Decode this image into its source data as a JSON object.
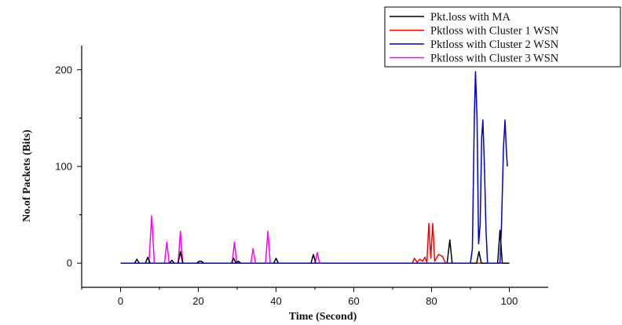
{
  "chart_data": {
    "type": "line",
    "title": "",
    "xlabel": "Time (Second)",
    "ylabel": "No.of Packets (Bits)",
    "xlim": [
      -10,
      110
    ],
    "ylim": [
      -25,
      225
    ],
    "x_ticks": [
      0,
      20,
      40,
      60,
      80,
      100
    ],
    "y_ticks": [
      0,
      100,
      200
    ],
    "grid": false,
    "legend_position": "top-right",
    "series": [
      {
        "name": "Pkt.loss with MA",
        "color": "#000000",
        "points": [
          [
            0,
            0
          ],
          [
            3.6,
            0
          ],
          [
            4.2,
            4
          ],
          [
            4.8,
            0
          ],
          [
            6.4,
            0
          ],
          [
            7,
            6
          ],
          [
            7.6,
            0
          ],
          [
            12.6,
            0
          ],
          [
            13.2,
            3
          ],
          [
            13.8,
            0
          ],
          [
            14.8,
            0
          ],
          [
            15.4,
            12
          ],
          [
            16,
            0
          ],
          [
            19.6,
            0
          ],
          [
            20.2,
            2
          ],
          [
            20.8,
            2
          ],
          [
            21.4,
            0
          ],
          [
            28.5,
            0
          ],
          [
            29.1,
            5
          ],
          [
            29.7,
            0
          ],
          [
            30.3,
            2
          ],
          [
            30.9,
            0
          ],
          [
            39.4,
            0
          ],
          [
            40,
            5
          ],
          [
            40.6,
            0
          ],
          [
            49,
            0
          ],
          [
            49.6,
            9
          ],
          [
            50.2,
            0
          ],
          [
            84,
            0
          ],
          [
            84.7,
            24
          ],
          [
            85.3,
            0
          ],
          [
            91.6,
            0
          ],
          [
            92.2,
            12
          ],
          [
            92.8,
            0
          ],
          [
            97,
            0
          ],
          [
            97.6,
            34
          ],
          [
            98.2,
            0
          ],
          [
            100,
            0
          ]
        ]
      },
      {
        "name": "Pktloss with Cluster 1 WSN",
        "color": "#ff0000",
        "points": [
          [
            0,
            0
          ],
          [
            75,
            0
          ],
          [
            75.6,
            5
          ],
          [
            76.3,
            1
          ],
          [
            77,
            4
          ],
          [
            77.7,
            2
          ],
          [
            78.3,
            6
          ],
          [
            78.8,
            1
          ],
          [
            79.3,
            41
          ],
          [
            79.8,
            5
          ],
          [
            80.3,
            41
          ],
          [
            80.8,
            2
          ],
          [
            81.8,
            9
          ],
          [
            82.8,
            7
          ],
          [
            83.6,
            0
          ],
          [
            100,
            0
          ]
        ]
      },
      {
        "name": "Pktloss with Cluster 2 WSN",
        "color": "#0000cc",
        "points": [
          [
            0,
            0
          ],
          [
            90,
            0
          ],
          [
            90.5,
            15
          ],
          [
            91,
            150
          ],
          [
            91.3,
            198
          ],
          [
            91.7,
            150
          ],
          [
            92.1,
            20
          ],
          [
            92.5,
            40
          ],
          [
            92.9,
            130
          ],
          [
            93.2,
            148
          ],
          [
            93.6,
            100
          ],
          [
            94,
            35
          ],
          [
            94.4,
            0
          ],
          [
            97.6,
            0
          ],
          [
            98,
            40
          ],
          [
            98.5,
            120
          ],
          [
            98.9,
            148
          ],
          [
            99.2,
            120
          ],
          [
            99.5,
            100
          ]
        ]
      },
      {
        "name": "Pktloss with Cluster 3 WSN",
        "color": "#ff00ff",
        "points": [
          [
            0,
            0
          ],
          [
            7.3,
            0
          ],
          [
            8,
            49
          ],
          [
            8.7,
            0
          ],
          [
            11.3,
            0
          ],
          [
            11.9,
            22
          ],
          [
            12.5,
            0
          ],
          [
            14.8,
            0
          ],
          [
            15.4,
            33
          ],
          [
            16,
            0
          ],
          [
            28.7,
            0
          ],
          [
            29.3,
            22
          ],
          [
            29.9,
            0
          ],
          [
            33.5,
            0
          ],
          [
            34.1,
            15
          ],
          [
            34.7,
            0
          ],
          [
            37.3,
            0
          ],
          [
            37.9,
            33
          ],
          [
            38.5,
            0
          ],
          [
            50,
            0
          ],
          [
            50.6,
            11
          ],
          [
            51.2,
            0
          ],
          [
            100,
            0
          ]
        ]
      }
    ]
  }
}
